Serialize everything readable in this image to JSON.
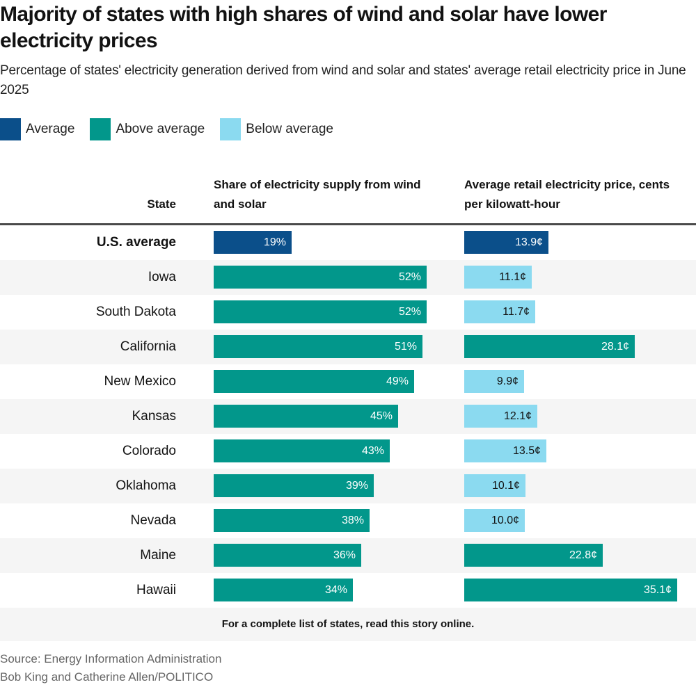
{
  "title": "Majority of states with high shares of wind and solar have lower electricity prices",
  "subtitle": "Percentage of states' electricity generation derived from wind and solar and states' average retail electricity price in June 2025",
  "legend": [
    {
      "label": "Average",
      "key": "average",
      "color": "#0b4f8a"
    },
    {
      "label": "Above average",
      "key": "above",
      "color": "#02978b"
    },
    {
      "label": "Below average",
      "key": "below",
      "color": "#8bdaf0"
    }
  ],
  "colors": {
    "average": "#0b4f8a",
    "above": "#02978b",
    "below": "#8bdaf0",
    "text_light": "#ffffff",
    "text_dark": "#121212"
  },
  "columns": {
    "state": "State",
    "share": "Share of electricity supply from wind and solar",
    "price": "Average retail electricity price, cents per kilowatt-hour"
  },
  "footer_note": "For a complete list of states, read this story online.",
  "source": "Source: Energy Information Administration",
  "credit": "Bob King and Catherine Allen/POLITICO",
  "chart_data": {
    "type": "bar",
    "orientation": "horizontal",
    "title": "Majority of states with high shares of wind and solar have lower electricity prices",
    "subtitle": "Percentage of states' electricity generation derived from wind and solar and states' average retail electricity price in June 2025",
    "categories": [
      "U.S. average",
      "Iowa",
      "South Dakota",
      "California",
      "New Mexico",
      "Kansas",
      "Colorado",
      "Oklahoma",
      "Nevada",
      "Maine",
      "Hawaii"
    ],
    "series": [
      {
        "name": "Share of electricity supply from wind and solar",
        "unit": "%",
        "values": [
          19,
          52,
          52,
          51,
          49,
          45,
          43,
          39,
          38,
          36,
          34
        ],
        "labels": [
          "19%",
          "52%",
          "52%",
          "51%",
          "49%",
          "45%",
          "43%",
          "39%",
          "38%",
          "36%",
          "34%"
        ],
        "classes": [
          "average",
          "above",
          "above",
          "above",
          "above",
          "above",
          "above",
          "above",
          "above",
          "above",
          "above"
        ]
      },
      {
        "name": "Average retail electricity price, cents per kilowatt-hour",
        "unit": "¢",
        "values": [
          13.9,
          11.1,
          11.7,
          28.1,
          9.9,
          12.1,
          13.5,
          10.1,
          10.0,
          22.8,
          35.1
        ],
        "labels": [
          "13.9¢",
          "11.1¢",
          "11.7¢",
          "28.1¢",
          "9.9¢",
          "12.1¢",
          "13.5¢",
          "10.1¢",
          "10.0¢",
          "22.8¢",
          "35.1¢"
        ],
        "classes": [
          "average",
          "below",
          "below",
          "above",
          "below",
          "below",
          "below",
          "below",
          "below",
          "above",
          "above"
        ]
      }
    ],
    "xlim_share": [
      0,
      52
    ],
    "xlim_price": [
      0,
      35.1
    ],
    "legend_position": "top-left",
    "grid": false
  }
}
